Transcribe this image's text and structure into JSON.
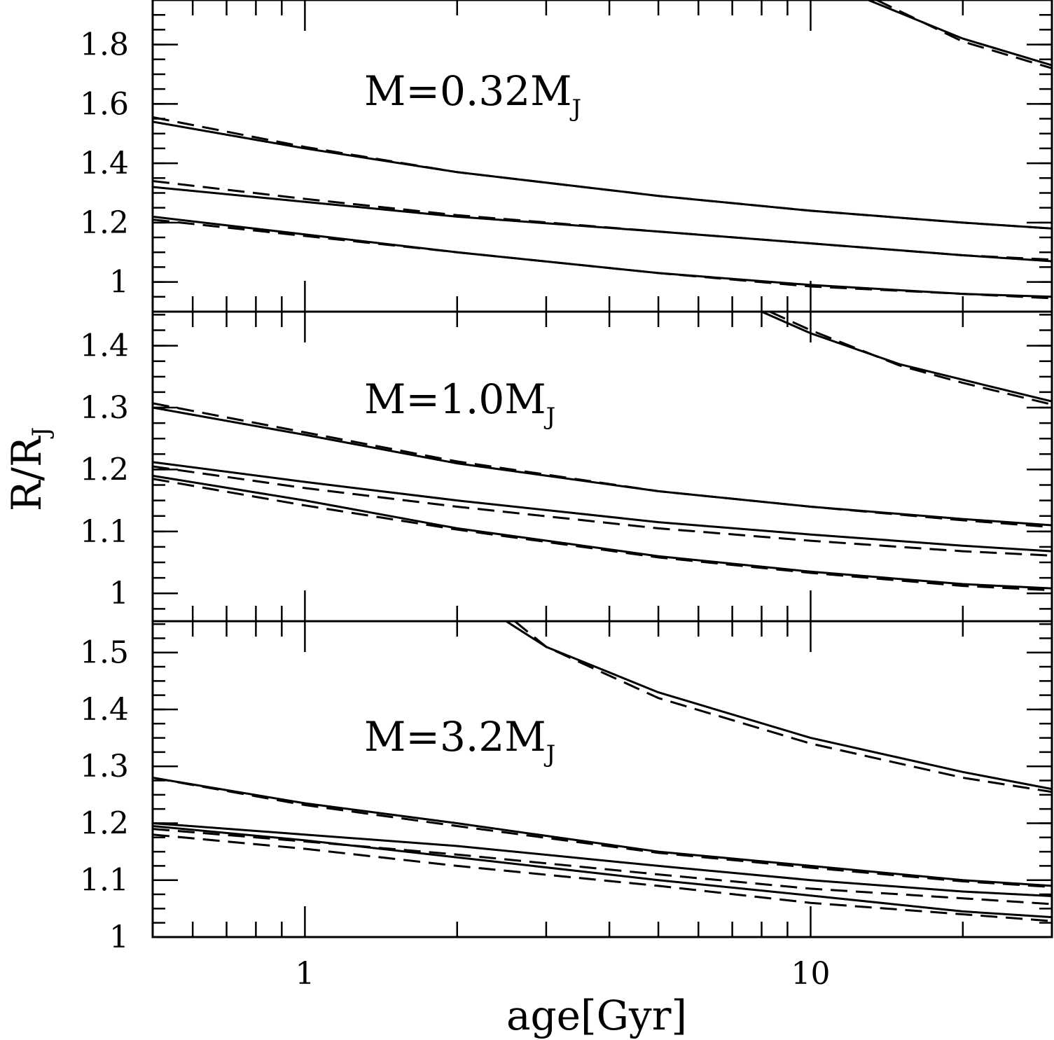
{
  "chart_data": {
    "type": "line",
    "xlabel": "age[Gyr]",
    "ylabel": {
      "main": "R/R",
      "sub": "J"
    },
    "xscale": "log",
    "xlim": [
      0.5,
      30
    ],
    "x_tick_labels": [
      {
        "value": 1,
        "text": "1"
      },
      {
        "value": 10,
        "text": "10"
      }
    ],
    "x_axis_scale": "log",
    "series_styles": [
      "solid",
      "dashed"
    ],
    "panels": [
      {
        "label": {
          "main": "M=0.32M",
          "sub": "J"
        },
        "ylim": [
          0.9,
          1.95
        ],
        "y_ticks": [
          {
            "value": 1,
            "text": "1"
          },
          {
            "value": 1.2,
            "text": "1.2"
          },
          {
            "value": 1.4,
            "text": "1.4"
          },
          {
            "value": 1.6,
            "text": "1.6"
          },
          {
            "value": 1.8,
            "text": "1.8"
          }
        ],
        "minor_y_step": 0.05,
        "series": [
          {
            "style": "solid",
            "x": [
              0.5,
              1,
              2,
              5,
              10,
              20,
              30
            ],
            "y": [
              1.54,
              1.45,
              1.37,
              1.29,
              1.24,
              1.2,
              1.18
            ]
          },
          {
            "style": "dashed",
            "x": [
              0.5,
              1,
              2,
              5,
              10,
              20,
              30
            ],
            "y": [
              1.555,
              1.455,
              1.37,
              1.29,
              1.24,
              1.2,
              1.18
            ]
          },
          {
            "style": "solid",
            "x": [
              0.5,
              1,
              2,
              5,
              10,
              20,
              30
            ],
            "y": [
              1.32,
              1.27,
              1.22,
              1.17,
              1.13,
              1.09,
              1.07
            ]
          },
          {
            "style": "dashed",
            "x": [
              0.5,
              1,
              2,
              5,
              10,
              20,
              30
            ],
            "y": [
              1.34,
              1.28,
              1.225,
              1.17,
              1.13,
              1.09,
              1.075
            ]
          },
          {
            "style": "solid",
            "x": [
              0.5,
              1,
              2,
              5,
              10,
              20,
              30
            ],
            "y": [
              1.22,
              1.16,
              1.1,
              1.03,
              0.99,
              0.96,
              0.95
            ]
          },
          {
            "style": "dashed",
            "x": [
              0.5,
              1,
              2,
              5,
              10,
              20,
              30
            ],
            "y": [
              1.21,
              1.155,
              1.1,
              1.03,
              0.985,
              0.96,
              0.945
            ]
          },
          {
            "style": "solid",
            "x": [
              13,
              20,
              30
            ],
            "y": [
              1.95,
              1.82,
              1.73
            ]
          },
          {
            "style": "dashed",
            "x": [
              13.5,
              20,
              30
            ],
            "y": [
              1.95,
              1.81,
              1.72
            ]
          }
        ]
      },
      {
        "label": {
          "main": "M=1.0M",
          "sub": "J"
        },
        "ylim": [
          0.955,
          1.455
        ],
        "y_ticks": [
          {
            "value": 1,
            "text": "1"
          },
          {
            "value": 1.1,
            "text": "1.1"
          },
          {
            "value": 1.2,
            "text": "1.2"
          },
          {
            "value": 1.3,
            "text": "1.3"
          },
          {
            "value": 1.4,
            "text": "1.4"
          }
        ],
        "minor_y_step": 0.025,
        "series": [
          {
            "style": "solid",
            "x": [
              0.5,
              1,
              2,
              5,
              10,
              20,
              30
            ],
            "y": [
              1.3,
              1.256,
              1.21,
              1.165,
              1.14,
              1.12,
              1.11
            ]
          },
          {
            "style": "dashed",
            "x": [
              0.5,
              1,
              2,
              5,
              10,
              20,
              30
            ],
            "y": [
              1.307,
              1.26,
              1.213,
              1.165,
              1.14,
              1.118,
              1.107
            ]
          },
          {
            "style": "solid",
            "x": [
              0.5,
              1,
              2,
              5,
              10,
              20,
              30
            ],
            "y": [
              1.212,
              1.18,
              1.15,
              1.115,
              1.095,
              1.077,
              1.068
            ]
          },
          {
            "style": "dashed",
            "x": [
              0.5,
              1,
              2,
              5,
              10,
              20,
              30
            ],
            "y": [
              1.205,
              1.17,
              1.14,
              1.105,
              1.085,
              1.068,
              1.061
            ]
          },
          {
            "style": "solid",
            "x": [
              0.5,
              1,
              2,
              5,
              10,
              20,
              30
            ],
            "y": [
              1.19,
              1.15,
              1.105,
              1.06,
              1.035,
              1.015,
              1.008
            ]
          },
          {
            "style": "dashed",
            "x": [
              0.5,
              1,
              2,
              5,
              10,
              20,
              30
            ],
            "y": [
              1.185,
              1.142,
              1.103,
              1.058,
              1.033,
              1.012,
              1.005
            ]
          },
          {
            "style": "solid",
            "x": [
              8,
              10,
              15,
              20,
              30
            ],
            "y": [
              1.455,
              1.42,
              1.37,
              1.345,
              1.31
            ]
          },
          {
            "style": "dashed",
            "x": [
              8.3,
              10,
              15,
              20,
              30
            ],
            "y": [
              1.455,
              1.425,
              1.368,
              1.34,
              1.305
            ]
          }
        ]
      },
      {
        "label": {
          "main": "M=3.2M",
          "sub": "J"
        },
        "ylim": [
          1.0,
          1.555
        ],
        "y_ticks": [
          {
            "value": 1,
            "text": "1"
          },
          {
            "value": 1.1,
            "text": "1.1"
          },
          {
            "value": 1.2,
            "text": "1.2"
          },
          {
            "value": 1.3,
            "text": "1.3"
          },
          {
            "value": 1.4,
            "text": "1.4"
          },
          {
            "value": 1.5,
            "text": "1.5"
          }
        ],
        "minor_y_step": 0.025,
        "series": [
          {
            "style": "solid",
            "x": [
              2.5,
              3,
              5,
              10,
              20,
              30
            ],
            "y": [
              1.555,
              1.51,
              1.43,
              1.35,
              1.29,
              1.26
            ]
          },
          {
            "style": "dashed",
            "x": [
              2.6,
              3,
              5,
              10,
              20,
              30
            ],
            "y": [
              1.555,
              1.51,
              1.42,
              1.34,
              1.28,
              1.255
            ]
          },
          {
            "style": "solid",
            "x": [
              0.5,
              1,
              2,
              5,
              10,
              20,
              30
            ],
            "y": [
              1.28,
              1.235,
              1.2,
              1.15,
              1.125,
              1.1,
              1.09
            ]
          },
          {
            "style": "dashed",
            "x": [
              0.5,
              1,
              2,
              5,
              10,
              20,
              30
            ],
            "y": [
              1.28,
              1.232,
              1.195,
              1.148,
              1.122,
              1.098,
              1.088
            ]
          },
          {
            "style": "solid",
            "x": [
              0.5,
              1,
              2,
              5,
              10,
              20,
              30
            ],
            "y": [
              1.2,
              1.18,
              1.16,
              1.125,
              1.1,
              1.08,
              1.072
            ]
          },
          {
            "style": "dashed",
            "x": [
              0.5,
              1,
              2,
              5,
              10,
              20,
              30
            ],
            "y": [
              1.19,
              1.168,
              1.145,
              1.11,
              1.085,
              1.068,
              1.058
            ]
          },
          {
            "style": "solid",
            "x": [
              0.5,
              1,
              2,
              5,
              10,
              20,
              30
            ],
            "y": [
              1.195,
              1.17,
              1.14,
              1.1,
              1.073,
              1.045,
              1.035
            ]
          },
          {
            "style": "dashed",
            "x": [
              0.5,
              1,
              2,
              5,
              10,
              20,
              30
            ],
            "y": [
              1.18,
              1.155,
              1.125,
              1.09,
              1.06,
              1.04,
              1.028
            ]
          }
        ]
      }
    ]
  }
}
